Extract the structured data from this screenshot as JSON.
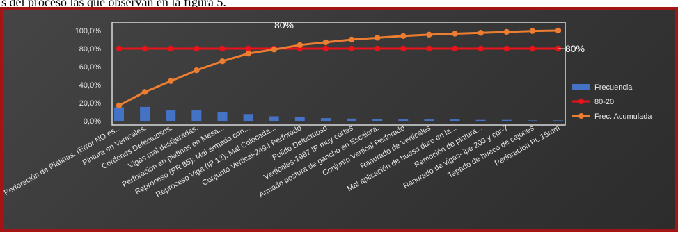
{
  "page": {
    "top_text": "s del proceso las que observan en la figura 5."
  },
  "chart_data": {
    "type": "bar",
    "categories": [
      "Perforación de Platinas. (Error NO es...",
      "Pintura en Verticales.",
      "Cordones Defectuosos.",
      "Vigas mal destijeradas.",
      "Perforación en platinas en Mesa...",
      "Reproceso (PR 85): Mal armado con...",
      "Reproceso Viga (IP 12); Mal Colocada...",
      "Conjunto Vertical-2494 Perforado",
      "Pulido Defectuoso",
      "Verticales-1987 IP muy cortas",
      "Armado postura de gancho en Escalera.",
      "Conjunto Vertical Perforado",
      "Ranurado de Verticales",
      "Mal aplicación de hueso duro en la...",
      "Remoción de pintura...",
      "Ranurado de vigas- ipe 200 y cpr-7",
      "Tapado de hueco de cajones",
      "Perforacion PL 15mm"
    ],
    "series": [
      {
        "name": "Frecuencia",
        "kind": "bar",
        "color": "#4472c4",
        "values": [
          15,
          15.5,
          11.5,
          11.5,
          10,
          7.5,
          5,
          4,
          3,
          2.5,
          2,
          1.5,
          1.5,
          1.5,
          1,
          1,
          0.5,
          0.5
        ]
      },
      {
        "name": "80-20",
        "kind": "line",
        "color": "#e8141a",
        "values": [
          80,
          80,
          80,
          80,
          80,
          80,
          80,
          80,
          80,
          80,
          80,
          80,
          80,
          80,
          80,
          80,
          80,
          80
        ]
      },
      {
        "name": "Frec. Acumulada",
        "kind": "line",
        "color": "#ed7d31",
        "values": [
          17,
          32,
          44,
          56,
          66,
          74.5,
          79,
          84,
          87,
          90,
          92,
          94,
          95.5,
          96.5,
          97.5,
          98.5,
          99.5,
          100
        ]
      }
    ],
    "y_ticks": [
      "0,0%",
      "20,0%",
      "40,0%",
      "60,0%",
      "80,0%",
      "100,0%"
    ],
    "ylim": [
      0,
      100
    ],
    "annotations": {
      "peak_label": "80%",
      "right_label": "80%"
    },
    "legend_position": "right",
    "grid": false,
    "colors": {
      "background": "#3a3a3a",
      "frame": "#a31515",
      "axis": "#d9d9d9"
    }
  }
}
